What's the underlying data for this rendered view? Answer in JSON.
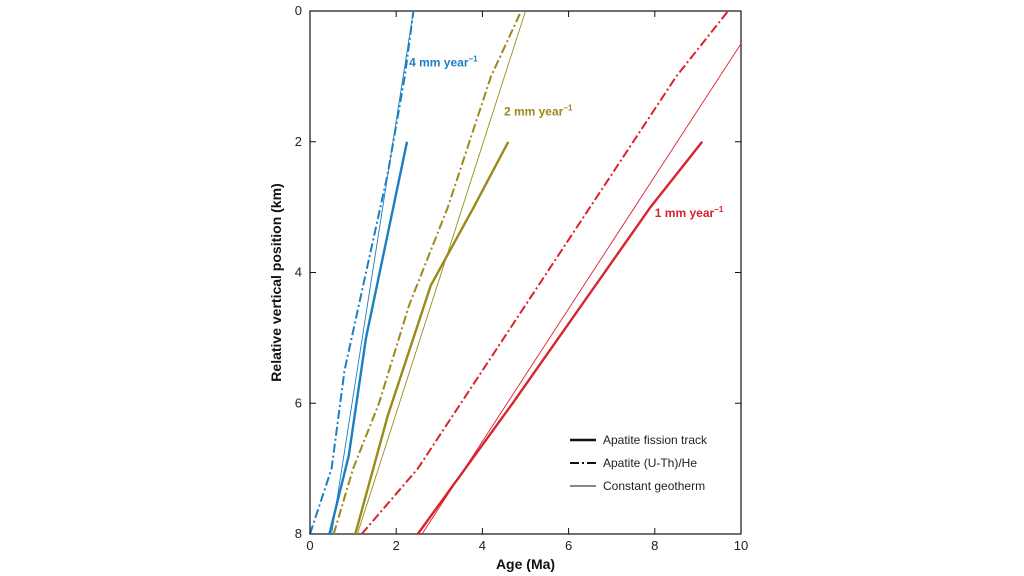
{
  "chart_data": {
    "type": "line",
    "xlabel": "Age (Ma)",
    "ylabel": "Relative vertical position (km)",
    "xlim": [
      0,
      10
    ],
    "ylim": [
      0,
      8
    ],
    "y_inverted": true,
    "xticks": [
      0,
      2,
      4,
      6,
      8,
      10
    ],
    "yticks": [
      0,
      2,
      4,
      6,
      8
    ],
    "grid": false,
    "legend_position": "bottom-right",
    "legend": [
      {
        "label": "Apatite fission track",
        "style": "solid-thick"
      },
      {
        "label": "Apatite (U-Th)/He",
        "style": "dash-dot"
      },
      {
        "label": "Constant  geotherm",
        "style": "solid-thin"
      }
    ],
    "rate_labels": [
      {
        "base": "4 mm year",
        "sup": "−1",
        "x": 2.3,
        "y": 0.85,
        "color": "#1b7fc1"
      },
      {
        "base": "2 mm year",
        "sup": "−1",
        "x": 4.5,
        "y": 1.6,
        "color": "#9a8a1a"
      },
      {
        "base": "1 mm year",
        "sup": "−1",
        "x": 8.0,
        "y": 3.15,
        "color": "#d9232d"
      }
    ],
    "series": [
      {
        "rate": "4 mm year⁻¹",
        "method": "Apatite fission track",
        "style": "solid-thick",
        "color": "#1b7fc1",
        "points": [
          [
            0.45,
            8
          ],
          [
            0.9,
            6.8
          ],
          [
            1.3,
            5.0
          ],
          [
            2.25,
            2.0
          ]
        ]
      },
      {
        "rate": "4 mm year⁻¹",
        "method": "Apatite (U-Th)/He",
        "style": "dash-dot",
        "color": "#1b7fc1",
        "points": [
          [
            0.0,
            8
          ],
          [
            0.5,
            7.0
          ],
          [
            0.8,
            5.5
          ],
          [
            1.3,
            4.0
          ],
          [
            1.8,
            2.5
          ],
          [
            2.2,
            1.0
          ],
          [
            2.4,
            0
          ]
        ]
      },
      {
        "rate": "4 mm year⁻¹",
        "method": "Constant  geotherm",
        "style": "solid-thin",
        "color": "#1b7fc1",
        "points": [
          [
            0.5,
            8
          ],
          [
            2.4,
            0
          ]
        ]
      },
      {
        "rate": "2 mm year⁻¹",
        "method": "Apatite fission track",
        "style": "solid-thick",
        "color": "#9a8a1a",
        "points": [
          [
            1.05,
            8
          ],
          [
            1.8,
            6.2
          ],
          [
            2.8,
            4.2
          ],
          [
            3.8,
            3.0
          ],
          [
            4.6,
            2.0
          ]
        ]
      },
      {
        "rate": "2 mm year⁻¹",
        "method": "Apatite (U-Th)/He",
        "style": "dash-dot",
        "color": "#9a8a1a",
        "points": [
          [
            0.55,
            8
          ],
          [
            1.0,
            7.0
          ],
          [
            1.6,
            6.0
          ],
          [
            2.3,
            4.5
          ],
          [
            3.2,
            3.0
          ],
          [
            4.2,
            1.0
          ],
          [
            4.9,
            0
          ]
        ]
      },
      {
        "rate": "2 mm year⁻¹",
        "method": "Constant  geotherm",
        "style": "solid-thin",
        "color": "#9a8a1a",
        "points": [
          [
            1.1,
            8
          ],
          [
            5.0,
            0
          ]
        ]
      },
      {
        "rate": "1 mm year⁻¹",
        "method": "Apatite fission track",
        "style": "solid-thick",
        "color": "#d9232d",
        "points": [
          [
            2.5,
            8
          ],
          [
            4.7,
            6.0
          ],
          [
            7.9,
            3.0
          ],
          [
            9.1,
            2.0
          ]
        ]
      },
      {
        "rate": "1 mm year⁻¹",
        "method": "Apatite (U-Th)/He",
        "style": "dash-dot",
        "color": "#d9232d",
        "points": [
          [
            1.2,
            8
          ],
          [
            2.5,
            7.0
          ],
          [
            4.0,
            5.5
          ],
          [
            5.5,
            4.0
          ],
          [
            7.0,
            2.5
          ],
          [
            8.5,
            1.0
          ],
          [
            9.7,
            0
          ]
        ]
      },
      {
        "rate": "1 mm year⁻¹",
        "method": "Constant  geotherm",
        "style": "solid-thin",
        "color": "#d9232d",
        "points": [
          [
            2.6,
            8
          ],
          [
            10.0,
            0.5
          ]
        ]
      }
    ]
  }
}
